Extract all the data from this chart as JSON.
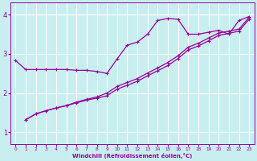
{
  "xlabel": "Windchill (Refroidissement éolien,°C)",
  "bg_color": "#c8eef0",
  "line_color": "#990099",
  "grid_color": "#ffffff",
  "xlim": [
    -0.5,
    23.5
  ],
  "ylim": [
    0.7,
    4.3
  ],
  "xticks": [
    0,
    1,
    2,
    3,
    4,
    5,
    6,
    7,
    8,
    9,
    10,
    11,
    12,
    13,
    14,
    15,
    16,
    17,
    18,
    19,
    20,
    21,
    22,
    23
  ],
  "yticks": [
    1,
    2,
    3,
    4
  ],
  "main_x": [
    0,
    1,
    2,
    3,
    4,
    5,
    6,
    7,
    8,
    9,
    10,
    11,
    12,
    13,
    14,
    15,
    16,
    17,
    18,
    19,
    20,
    21,
    22,
    23
  ],
  "main_y": [
    2.83,
    2.6,
    2.6,
    2.6,
    2.6,
    2.6,
    2.58,
    2.58,
    2.55,
    2.5,
    2.87,
    3.22,
    3.3,
    3.5,
    3.85,
    3.9,
    3.88,
    3.5,
    3.5,
    3.55,
    3.6,
    3.5,
    3.85,
    3.95
  ],
  "reg1_x": [
    1,
    2,
    3,
    4,
    5,
    6,
    7,
    8,
    9,
    10,
    11,
    12,
    13,
    14,
    15,
    16,
    17,
    18,
    19,
    20,
    21,
    22,
    23
  ],
  "reg1_y": [
    1.32,
    1.47,
    1.55,
    1.62,
    1.68,
    1.75,
    1.82,
    1.87,
    1.93,
    2.1,
    2.2,
    2.3,
    2.44,
    2.57,
    2.7,
    2.88,
    3.1,
    3.2,
    3.33,
    3.47,
    3.52,
    3.58,
    3.88
  ],
  "reg2_x": [
    1,
    2,
    3,
    4,
    5,
    6,
    7,
    8,
    9,
    10,
    11,
    12,
    13,
    14,
    15,
    16,
    17,
    18,
    19,
    20,
    21,
    22,
    23
  ],
  "reg2_y": [
    1.32,
    1.47,
    1.55,
    1.62,
    1.68,
    1.77,
    1.84,
    1.9,
    2.0,
    2.17,
    2.27,
    2.37,
    2.51,
    2.64,
    2.78,
    2.95,
    3.17,
    3.27,
    3.4,
    3.53,
    3.58,
    3.63,
    3.93
  ]
}
